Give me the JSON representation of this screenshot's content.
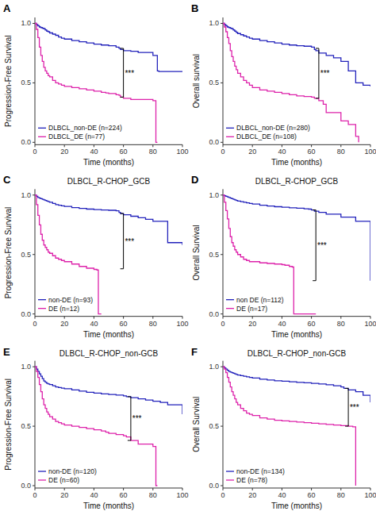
{
  "chart_data": [
    {
      "type": "step",
      "panel_label": "A",
      "xlabel": "Time (months)",
      "ylabel": "Progression-Free Survival",
      "xlim": [
        0,
        100
      ],
      "ylim": [
        -0.02,
        1.05
      ],
      "xticks": [
        0,
        20,
        40,
        60,
        80,
        100
      ],
      "yticks": [
        {
          "value": 0.0,
          "label": "0.0"
        },
        0.5,
        {
          "value": 1.0,
          "label": "1.0"
        }
      ],
      "grid": false,
      "legend": "lower left",
      "series": [
        {
          "name": "DLBCL_non-DE (n=224)",
          "color": "#2222BB",
          "x": [
            0,
            1,
            2,
            3,
            4,
            5,
            6,
            7,
            8,
            9,
            10,
            12,
            14,
            16,
            18,
            20,
            25,
            30,
            35,
            40,
            45,
            50,
            55,
            57,
            58,
            60,
            65,
            70,
            80,
            83,
            84,
            100
          ],
          "values": [
            1.0,
            0.99,
            0.98,
            0.97,
            0.965,
            0.96,
            0.955,
            0.945,
            0.935,
            0.93,
            0.92,
            0.91,
            0.9,
            0.885,
            0.875,
            0.868,
            0.855,
            0.845,
            0.835,
            0.825,
            0.818,
            0.812,
            0.8,
            0.79,
            0.78,
            0.77,
            0.765,
            0.755,
            0.73,
            0.6,
            0.595,
            0.595
          ]
        },
        {
          "name": "DLBCL_DE (n=77)",
          "color": "#DD22AA",
          "x": [
            0,
            1,
            2,
            3,
            4,
            5,
            6,
            7,
            8,
            9,
            10,
            12,
            14,
            16,
            18,
            20,
            25,
            30,
            35,
            40,
            45,
            48,
            50,
            55,
            57,
            58,
            60,
            65,
            80,
            82,
            83
          ],
          "values": [
            1.0,
            0.95,
            0.88,
            0.8,
            0.73,
            0.68,
            0.63,
            0.6,
            0.58,
            0.56,
            0.55,
            0.52,
            0.5,
            0.49,
            0.48,
            0.47,
            0.46,
            0.45,
            0.44,
            0.43,
            0.42,
            0.415,
            0.41,
            0.4,
            0.395,
            0.38,
            0.37,
            0.36,
            0.35,
            0.0,
            0.0
          ]
        }
      ],
      "annotations": [
        {
          "type": "bracket",
          "x": 60,
          "y_low": 0.38,
          "y_high": 0.79
        },
        {
          "text": "***",
          "x": 61,
          "y": 0.585
        }
      ]
    },
    {
      "type": "step",
      "panel_label": "B",
      "xlabel": "Time (months)",
      "ylabel": "Overall survival",
      "xlim": [
        0,
        100
      ],
      "ylim": [
        -0.02,
        1.05
      ],
      "xticks": [
        0,
        20,
        40,
        60,
        80,
        100
      ],
      "yticks": [
        {
          "value": 0.0,
          "label": "0.0"
        },
        0.5,
        {
          "value": 1.0,
          "label": "1.0"
        }
      ],
      "grid": false,
      "legend": "lower left",
      "series": [
        {
          "name": "DLBCL_non-DE (n=280)",
          "color": "#2222BB",
          "x": [
            0,
            1,
            2,
            3,
            4,
            5,
            6,
            7,
            8,
            9,
            10,
            12,
            14,
            16,
            18,
            20,
            25,
            30,
            35,
            40,
            45,
            50,
            55,
            60,
            62,
            63,
            65,
            70,
            75,
            80,
            85,
            90,
            95,
            100
          ],
          "values": [
            1.0,
            0.99,
            0.98,
            0.97,
            0.965,
            0.96,
            0.955,
            0.945,
            0.935,
            0.925,
            0.915,
            0.905,
            0.895,
            0.885,
            0.875,
            0.868,
            0.855,
            0.845,
            0.835,
            0.825,
            0.818,
            0.812,
            0.808,
            0.8,
            0.78,
            0.77,
            0.75,
            0.73,
            0.71,
            0.68,
            0.6,
            0.5,
            0.48,
            0.47
          ]
        },
        {
          "name": "DLBCL_DE (n=108)",
          "color": "#DD22AA",
          "x": [
            0,
            1,
            2,
            3,
            4,
            5,
            6,
            7,
            8,
            9,
            10,
            12,
            14,
            16,
            18,
            20,
            25,
            30,
            35,
            40,
            45,
            50,
            55,
            60,
            62,
            65,
            68,
            70,
            80,
            85,
            90,
            92
          ],
          "values": [
            1.0,
            0.97,
            0.93,
            0.88,
            0.83,
            0.77,
            0.72,
            0.68,
            0.64,
            0.61,
            0.58,
            0.55,
            0.52,
            0.5,
            0.48,
            0.46,
            0.44,
            0.43,
            0.42,
            0.41,
            0.4,
            0.39,
            0.385,
            0.38,
            0.37,
            0.35,
            0.32,
            0.25,
            0.18,
            0.15,
            0.05,
            0.0
          ]
        }
      ],
      "annotations": [
        {
          "type": "bracket",
          "x": 65,
          "y_low": 0.37,
          "y_high": 0.79
        },
        {
          "text": "***",
          "x": 66,
          "y": 0.58
        }
      ]
    },
    {
      "type": "step",
      "panel_label": "C",
      "title": "DLBCL_R-CHOP_GCB",
      "xlabel": "Time (months)",
      "ylabel": "Progression-Free Survival",
      "xlim": [
        0,
        100
      ],
      "ylim": [
        -0.02,
        1.05
      ],
      "xticks": [
        0,
        20,
        40,
        60,
        80,
        100
      ],
      "yticks": [
        {
          "value": 0.0,
          "label": "0.0"
        },
        0.5,
        {
          "value": 1.0,
          "label": "1.0"
        }
      ],
      "grid": false,
      "legend": "lower left",
      "series": [
        {
          "name": "non-DE (n=93)",
          "color": "#2222BB",
          "x": [
            0,
            1,
            2,
            3,
            4,
            5,
            6,
            7,
            8,
            9,
            10,
            12,
            14,
            16,
            18,
            20,
            25,
            30,
            35,
            40,
            45,
            50,
            55,
            57,
            58,
            60,
            65,
            70,
            75,
            80,
            90,
            100
          ],
          "values": [
            1.0,
            0.99,
            0.98,
            0.975,
            0.97,
            0.965,
            0.96,
            0.955,
            0.95,
            0.945,
            0.94,
            0.93,
            0.92,
            0.915,
            0.91,
            0.905,
            0.895,
            0.888,
            0.882,
            0.878,
            0.875,
            0.872,
            0.868,
            0.855,
            0.845,
            0.835,
            0.822,
            0.81,
            0.796,
            0.78,
            0.6,
            0.58
          ]
        },
        {
          "name": "DE (n=12)",
          "color": "#DD22AA",
          "x": [
            0,
            1,
            2,
            3,
            4,
            5,
            6,
            7,
            8,
            9,
            10,
            12,
            14,
            16,
            18,
            20,
            25,
            30,
            35,
            40,
            42,
            43,
            45
          ],
          "values": [
            1.0,
            0.92,
            0.83,
            0.75,
            0.67,
            0.62,
            0.58,
            0.56,
            0.54,
            0.52,
            0.51,
            0.49,
            0.47,
            0.46,
            0.45,
            0.44,
            0.42,
            0.4,
            0.385,
            0.375,
            0.37,
            0.0,
            0.0
          ]
        }
      ],
      "annotations": [
        {
          "type": "bracket",
          "x": 60,
          "y_low": 0.38,
          "y_high": 0.845
        },
        {
          "text": "***",
          "x": 61,
          "y": 0.612
        }
      ]
    },
    {
      "type": "step",
      "panel_label": "D",
      "title": "DLBCL_R-CHOP_GCB",
      "xlabel": "Time (months)",
      "ylabel": "Overall Survival",
      "xlim": [
        0,
        100
      ],
      "ylim": [
        -0.02,
        1.05
      ],
      "xticks": [
        0,
        20,
        40,
        60,
        80,
        100
      ],
      "yticks": [
        {
          "value": 0.0,
          "label": "0.0"
        },
        0.5,
        {
          "value": 1.0,
          "label": "1.0"
        }
      ],
      "grid": false,
      "legend": "lower left",
      "series": [
        {
          "name": "non DE (n=112)",
          "color": "#2222BB",
          "x": [
            0,
            1,
            2,
            3,
            4,
            5,
            6,
            7,
            8,
            9,
            10,
            12,
            14,
            16,
            18,
            20,
            25,
            30,
            35,
            40,
            45,
            50,
            55,
            58,
            60,
            62,
            65,
            70,
            80,
            90,
            100
          ],
          "values": [
            1.0,
            0.995,
            0.99,
            0.985,
            0.98,
            0.975,
            0.97,
            0.965,
            0.96,
            0.955,
            0.95,
            0.945,
            0.94,
            0.935,
            0.93,
            0.925,
            0.915,
            0.908,
            0.902,
            0.898,
            0.893,
            0.889,
            0.885,
            0.882,
            0.875,
            0.865,
            0.855,
            0.84,
            0.815,
            0.78,
            0.28
          ]
        },
        {
          "name": "DE (n=17)",
          "color": "#DD22AA",
          "x": [
            0,
            1,
            2,
            3,
            4,
            5,
            6,
            7,
            8,
            9,
            10,
            12,
            14,
            16,
            18,
            20,
            25,
            30,
            35,
            40,
            42,
            45,
            47,
            48,
            60,
            62,
            63
          ],
          "values": [
            1.0,
            0.94,
            0.87,
            0.8,
            0.72,
            0.65,
            0.6,
            0.57,
            0.54,
            0.52,
            0.5,
            0.48,
            0.46,
            0.45,
            0.44,
            0.44,
            0.43,
            0.425,
            0.42,
            0.415,
            0.41,
            0.4,
            0.395,
            0.0,
            0.0,
            0.0,
            0.0
          ]
        }
      ],
      "annotations": [
        {
          "type": "bracket",
          "x": 63,
          "y_low": 0.28,
          "y_high": 0.875
        },
        {
          "text": "***",
          "x": 64,
          "y": 0.577
        }
      ]
    },
    {
      "type": "step",
      "panel_label": "E",
      "title": "DLBCL_R-CHOP_non-GCB",
      "xlabel": "Time (months)",
      "ylabel": "Progression-Free Survival",
      "xlim": [
        0,
        100
      ],
      "ylim": [
        -0.02,
        1.05
      ],
      "xticks": [
        0,
        20,
        40,
        60,
        80,
        100
      ],
      "yticks": [
        {
          "value": 0.0,
          "label": "0.0"
        },
        0.5,
        {
          "value": 1.0,
          "label": "1.0"
        }
      ],
      "grid": false,
      "legend": "lower left",
      "series": [
        {
          "name": "non-DE (n=120)",
          "color": "#2222BB",
          "x": [
            0,
            1,
            2,
            3,
            4,
            5,
            6,
            7,
            8,
            9,
            10,
            12,
            14,
            16,
            18,
            20,
            25,
            30,
            35,
            40,
            45,
            50,
            55,
            60,
            62,
            65,
            70,
            75,
            80,
            85,
            90,
            100
          ],
          "values": [
            1.0,
            0.98,
            0.96,
            0.94,
            0.92,
            0.9,
            0.88,
            0.87,
            0.86,
            0.855,
            0.85,
            0.84,
            0.83,
            0.825,
            0.82,
            0.815,
            0.805,
            0.795,
            0.785,
            0.778,
            0.772,
            0.767,
            0.762,
            0.755,
            0.748,
            0.74,
            0.73,
            0.72,
            0.71,
            0.7,
            0.68,
            0.6
          ]
        },
        {
          "name": "DE (n=60)",
          "color": "#DD22AA",
          "x": [
            0,
            1,
            2,
            3,
            4,
            5,
            6,
            7,
            8,
            9,
            10,
            12,
            14,
            16,
            18,
            20,
            25,
            30,
            35,
            40,
            45,
            48,
            50,
            55,
            60,
            62,
            65,
            70,
            80,
            82,
            83
          ],
          "values": [
            1.0,
            0.96,
            0.91,
            0.85,
            0.79,
            0.73,
            0.68,
            0.65,
            0.62,
            0.6,
            0.58,
            0.56,
            0.54,
            0.53,
            0.52,
            0.51,
            0.5,
            0.49,
            0.48,
            0.47,
            0.46,
            0.45,
            0.44,
            0.43,
            0.42,
            0.41,
            0.38,
            0.35,
            0.33,
            0.0,
            0.0
          ]
        }
      ],
      "annotations": [
        {
          "type": "bracket",
          "x": 65,
          "y_low": 0.38,
          "y_high": 0.748
        },
        {
          "text": "***",
          "x": 66,
          "y": 0.564
        }
      ]
    },
    {
      "type": "step",
      "panel_label": "F",
      "title": "DLBCL_R-CHOP_non-GCB",
      "xlabel": "Time (months)",
      "ylabel": "Overall Survival",
      "xlim": [
        0,
        100
      ],
      "ylim": [
        -0.02,
        1.05
      ],
      "xticks": [
        0,
        20,
        40,
        60,
        80,
        100
      ],
      "yticks": [
        {
          "value": 0.0,
          "label": "0.0"
        },
        0.5,
        {
          "value": 1.0,
          "label": "1.0"
        }
      ],
      "grid": false,
      "legend": "lower left",
      "series": [
        {
          "name": "non-DE (n=134)",
          "color": "#2222BB",
          "x": [
            0,
            1,
            2,
            3,
            4,
            5,
            6,
            7,
            8,
            9,
            10,
            12,
            14,
            16,
            18,
            20,
            25,
            30,
            35,
            40,
            45,
            50,
            55,
            60,
            65,
            70,
            75,
            80,
            82,
            85,
            90,
            95,
            100
          ],
          "values": [
            1.0,
            0.99,
            0.98,
            0.97,
            0.96,
            0.955,
            0.95,
            0.945,
            0.94,
            0.935,
            0.93,
            0.925,
            0.92,
            0.915,
            0.91,
            0.905,
            0.895,
            0.888,
            0.882,
            0.878,
            0.873,
            0.869,
            0.865,
            0.86,
            0.855,
            0.848,
            0.84,
            0.83,
            0.818,
            0.805,
            0.79,
            0.76,
            0.7
          ]
        },
        {
          "name": "DE (n=78)",
          "color": "#DD22AA",
          "x": [
            0,
            1,
            2,
            3,
            4,
            5,
            6,
            7,
            8,
            9,
            10,
            12,
            14,
            16,
            18,
            20,
            25,
            30,
            35,
            40,
            45,
            50,
            55,
            60,
            65,
            70,
            75,
            80,
            85,
            88,
            90
          ],
          "values": [
            1.0,
            0.98,
            0.95,
            0.91,
            0.87,
            0.83,
            0.79,
            0.76,
            0.73,
            0.7,
            0.68,
            0.65,
            0.63,
            0.61,
            0.6,
            0.59,
            0.57,
            0.56,
            0.55,
            0.545,
            0.54,
            0.535,
            0.53,
            0.525,
            0.52,
            0.515,
            0.51,
            0.505,
            0.5,
            0.495,
            0.0
          ]
        }
      ],
      "annotations": [
        {
          "type": "bracket",
          "x": 85,
          "y_low": 0.5,
          "y_high": 0.818
        },
        {
          "text": "***",
          "x": 86,
          "y": 0.659
        }
      ]
    }
  ]
}
